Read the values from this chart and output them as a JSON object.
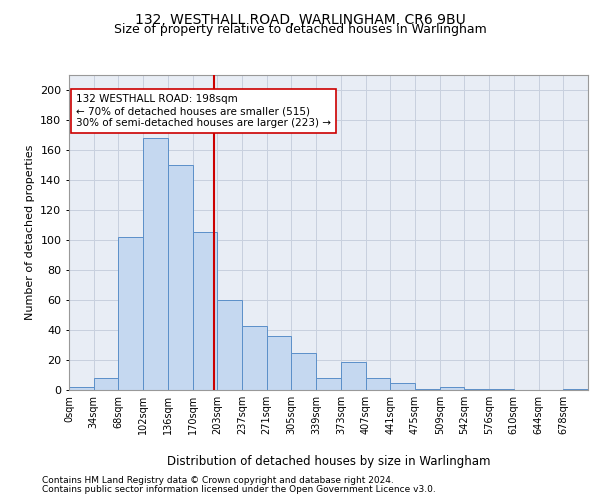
{
  "title1": "132, WESTHALL ROAD, WARLINGHAM, CR6 9BU",
  "title2": "Size of property relative to detached houses in Warlingham",
  "xlabel": "Distribution of detached houses by size in Warlingham",
  "ylabel": "Number of detached properties",
  "bin_labels": [
    "0sqm",
    "34sqm",
    "68sqm",
    "102sqm",
    "136sqm",
    "170sqm",
    "203sqm",
    "237sqm",
    "271sqm",
    "305sqm",
    "339sqm",
    "373sqm",
    "407sqm",
    "441sqm",
    "475sqm",
    "509sqm",
    "542sqm",
    "576sqm",
    "610sqm",
    "644sqm",
    "678sqm"
  ],
  "bar_heights": [
    2,
    8,
    102,
    168,
    150,
    105,
    60,
    43,
    36,
    25,
    8,
    19,
    8,
    5,
    1,
    2,
    1,
    1,
    0,
    0,
    1
  ],
  "bar_color": "#c5d8f0",
  "bar_edge_color": "#5b8fc9",
  "grid_color": "#c8d0de",
  "background_color": "#e8edf5",
  "vline_color": "#cc0000",
  "annotation_text": "132 WESTHALL ROAD: 198sqm\n← 70% of detached houses are smaller (515)\n30% of semi-detached houses are larger (223) →",
  "annotation_box_color": "#ffffff",
  "annotation_box_edge": "#cc0000",
  "ylim": [
    0,
    210
  ],
  "yticks": [
    0,
    20,
    40,
    60,
    80,
    100,
    120,
    140,
    160,
    180,
    200
  ],
  "footnote1": "Contains HM Land Registry data © Crown copyright and database right 2024.",
  "footnote2": "Contains public sector information licensed under the Open Government Licence v3.0."
}
